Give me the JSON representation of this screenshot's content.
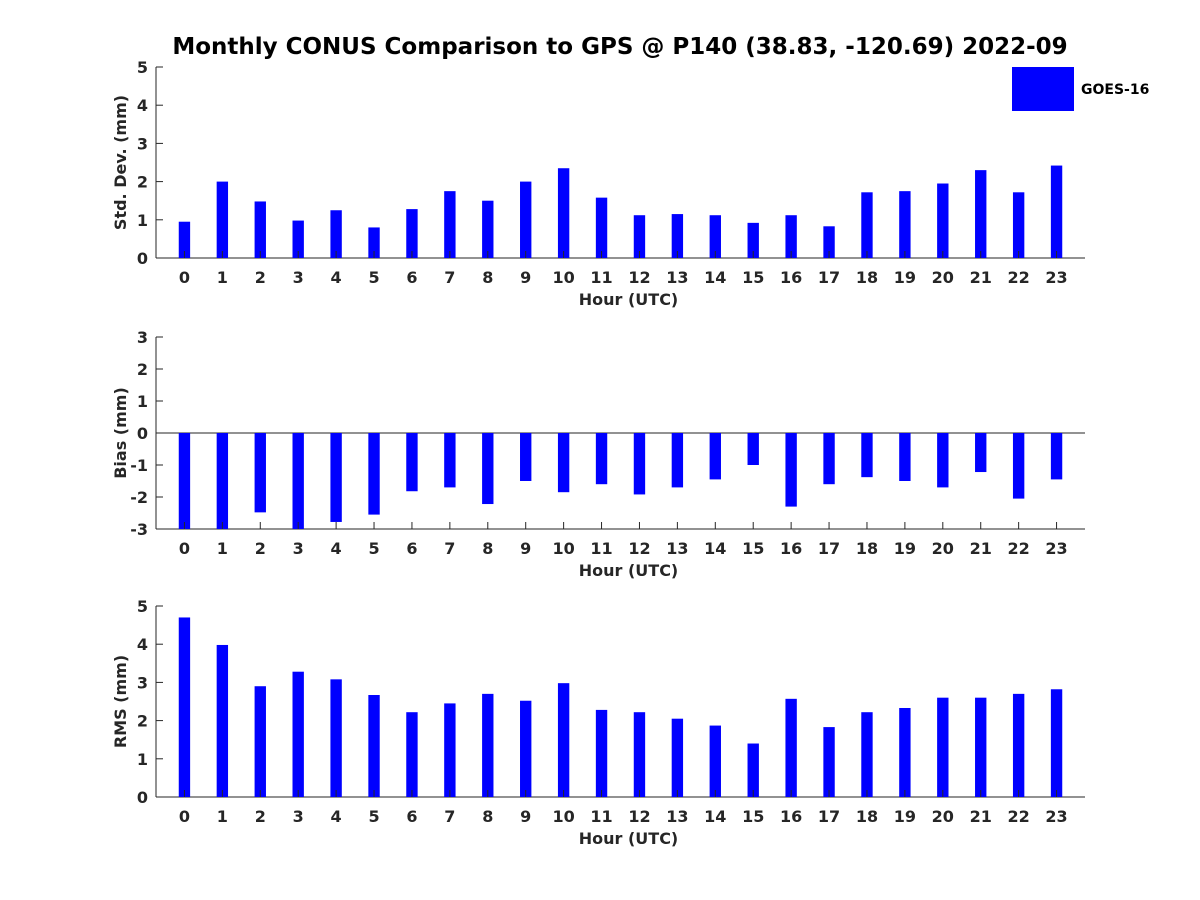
{
  "title": "Monthly CONUS Comparison to GPS @ P140 (38.83, -120.69) 2022-09",
  "bar_color": "#0000ff",
  "legend": {
    "label": "GOES-16",
    "placement": "top-right"
  },
  "chart_data": [
    {
      "type": "bar",
      "xlabel": "Hour (UTC)",
      "ylabel": "Std. Dev. (mm)",
      "ylim": [
        0,
        5
      ],
      "yticks": [
        0,
        1,
        2,
        3,
        4,
        5
      ],
      "categories": [
        0,
        1,
        2,
        3,
        4,
        5,
        6,
        7,
        8,
        9,
        10,
        11,
        12,
        13,
        14,
        15,
        16,
        17,
        18,
        19,
        20,
        21,
        22,
        23
      ],
      "series": [
        {
          "name": "GOES-16",
          "values": [
            0.95,
            2.0,
            1.48,
            0.98,
            1.25,
            0.8,
            1.28,
            1.75,
            1.5,
            2.0,
            2.35,
            1.58,
            1.12,
            1.15,
            1.12,
            0.92,
            1.12,
            0.83,
            1.72,
            1.75,
            1.95,
            2.3,
            1.72,
            2.42
          ]
        }
      ]
    },
    {
      "type": "bar",
      "xlabel": "Hour (UTC)",
      "ylabel": "Bias (mm)",
      "ylim": [
        -3,
        3
      ],
      "yticks": [
        -3,
        -2,
        -1,
        0,
        1,
        2,
        3
      ],
      "categories": [
        0,
        1,
        2,
        3,
        4,
        5,
        6,
        7,
        8,
        9,
        10,
        11,
        12,
        13,
        14,
        15,
        16,
        17,
        18,
        19,
        20,
        21,
        22,
        23
      ],
      "series": [
        {
          "name": "GOES-16",
          "values": [
            -3.0,
            -3.0,
            -2.48,
            -3.0,
            -2.78,
            -2.55,
            -1.82,
            -1.7,
            -2.22,
            -1.5,
            -1.85,
            -1.6,
            -1.92,
            -1.7,
            -1.45,
            -1.0,
            -2.3,
            -1.6,
            -1.38,
            -1.5,
            -1.7,
            -1.22,
            -2.05,
            -1.45
          ]
        }
      ]
    },
    {
      "type": "bar",
      "xlabel": "Hour (UTC)",
      "ylabel": "RMS (mm)",
      "ylim": [
        0,
        5
      ],
      "yticks": [
        0,
        1,
        2,
        3,
        4,
        5
      ],
      "categories": [
        0,
        1,
        2,
        3,
        4,
        5,
        6,
        7,
        8,
        9,
        10,
        11,
        12,
        13,
        14,
        15,
        16,
        17,
        18,
        19,
        20,
        21,
        22,
        23
      ],
      "series": [
        {
          "name": "GOES-16",
          "values": [
            4.7,
            3.98,
            2.9,
            3.28,
            3.08,
            2.67,
            2.22,
            2.45,
            2.7,
            2.52,
            2.98,
            2.28,
            2.22,
            2.05,
            1.87,
            1.4,
            2.57,
            1.83,
            2.22,
            2.33,
            2.6,
            2.6,
            2.7,
            2.82
          ]
        }
      ]
    }
  ]
}
